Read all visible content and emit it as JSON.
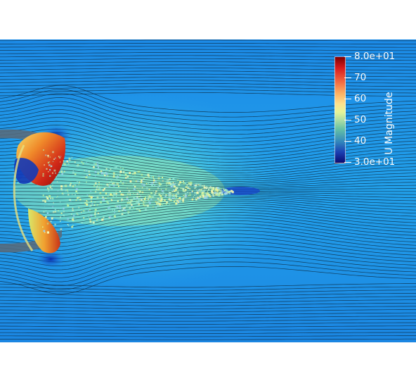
{
  "colorbar": {
    "title": "U Magnitude",
    "ticks": [
      {
        "label": "8.0e+01"
      },
      {
        "label": "70"
      },
      {
        "label": "60"
      },
      {
        "label": "50"
      },
      {
        "label": "40"
      },
      {
        "label": "3.0e+01"
      }
    ],
    "colors": {
      "max": "#7f0000",
      "min": "#0a0a70"
    }
  },
  "scene": {
    "background_color": "#1e8fe8",
    "streamline_color": "#0b1e2e",
    "page_color": "#ffffff"
  }
}
